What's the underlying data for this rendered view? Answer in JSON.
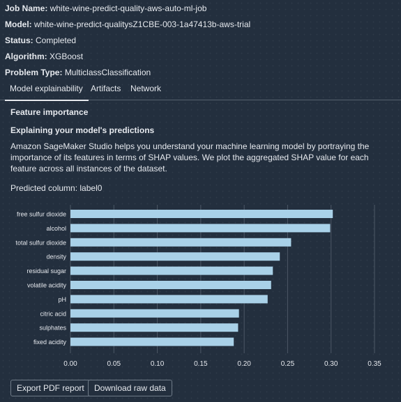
{
  "meta": {
    "job": {
      "label": "Job Name:",
      "value": "white-wine-predict-quality-aws-auto-ml-job"
    },
    "model": {
      "label": "Model:",
      "value": "white-wine-predict-qualitysZ1CBE-003-1a47413b-aws-trial"
    },
    "status": {
      "label": "Status:",
      "value": "Completed"
    },
    "algorithm": {
      "label": "Algorithm:",
      "value": "XGBoost"
    },
    "problem": {
      "label": "Problem Type:",
      "value": "MulticlassClassification"
    }
  },
  "tabs": [
    {
      "label": "Model explainability",
      "active": true
    },
    {
      "label": "Artifacts",
      "active": false
    },
    {
      "label": "Network",
      "active": false
    }
  ],
  "section": {
    "title": "Feature importance",
    "subtitle": "Explaining your model's predictions",
    "description": "Amazon SageMaker Studio helps you understand your machine learning model by portraying the importance of its features in terms of SHAP values. We plot the aggregated SHAP value for each feature across all instances of the dataset.",
    "predicted_column": "Predicted column: label0"
  },
  "chart_data": {
    "type": "bar",
    "orientation": "horizontal",
    "categories": [
      "free sulfur dioxide",
      "alcohol",
      "total sulfur dioxide",
      "density",
      "residual sugar",
      "volatile acidity",
      "pH",
      "citric acid",
      "sulphates",
      "fixed acidity"
    ],
    "values": [
      0.302,
      0.299,
      0.254,
      0.241,
      0.233,
      0.231,
      0.227,
      0.194,
      0.193,
      0.188
    ],
    "xlim": [
      0,
      0.35
    ],
    "xticks": [
      "0.00",
      "0.05",
      "0.10",
      "0.15",
      "0.20",
      "0.25",
      "0.30",
      "0.35"
    ],
    "grid": "vertical",
    "bar_color": "#a9d1e8"
  },
  "buttons": {
    "export": "Export PDF report",
    "download": "Download raw data"
  }
}
